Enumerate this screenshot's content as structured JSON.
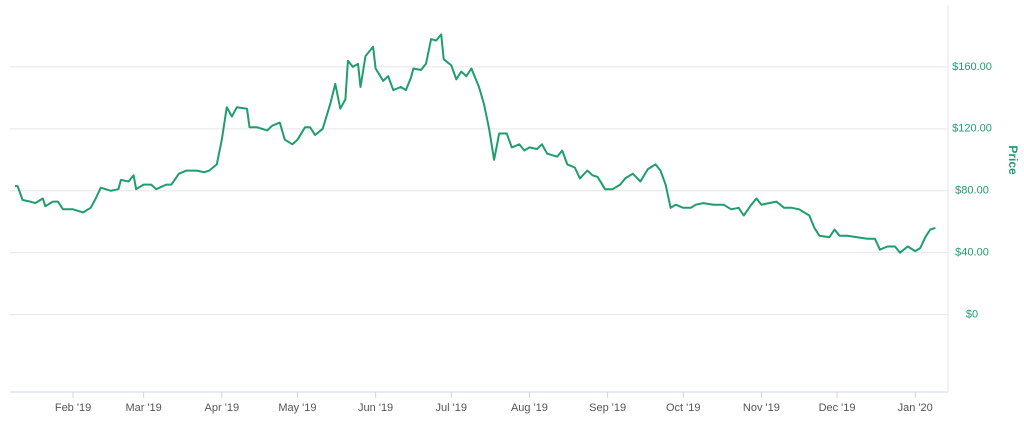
{
  "chart_data": {
    "type": "line",
    "y_label": "Price",
    "color": "#1f9d6f",
    "grid": true,
    "xlim": [
      6,
      378
    ],
    "ylim": [
      -50,
      200
    ],
    "yticks": [
      {
        "value": 0,
        "label": "$0"
      },
      {
        "value": 40,
        "label": "$40.00"
      },
      {
        "value": 80,
        "label": "$80.00"
      },
      {
        "value": 120,
        "label": "$120.00"
      },
      {
        "value": 160,
        "label": "$160.00"
      }
    ],
    "xticks": [
      {
        "value": 31,
        "label": "Feb '19"
      },
      {
        "value": 59,
        "label": "Mar '19"
      },
      {
        "value": 90,
        "label": "Apr '19"
      },
      {
        "value": 120,
        "label": "May '19"
      },
      {
        "value": 151,
        "label": "Jun '19"
      },
      {
        "value": 181,
        "label": "Jul '19"
      },
      {
        "value": 212,
        "label": "Aug '19"
      },
      {
        "value": 243,
        "label": "Sep '19"
      },
      {
        "value": 273,
        "label": "Oct '19"
      },
      {
        "value": 304,
        "label": "Nov '19"
      },
      {
        "value": 334,
        "label": "Dec '19"
      },
      {
        "value": 365,
        "label": "Jan '20"
      }
    ],
    "x": [
      8,
      9,
      11,
      14,
      16,
      19,
      20,
      23,
      25,
      27,
      31,
      35,
      38,
      40,
      42,
      46,
      49,
      50,
      53,
      55,
      56,
      59,
      62,
      64,
      68,
      70,
      73,
      76,
      80,
      83,
      85,
      88,
      90,
      92,
      94,
      96,
      100,
      101,
      104,
      108,
      110,
      113,
      115,
      118,
      120,
      123,
      125,
      127,
      130,
      133,
      135,
      137,
      139,
      140,
      142,
      144,
      145,
      147,
      150,
      151,
      154,
      156,
      158,
      161,
      163,
      165,
      166,
      169,
      171,
      173,
      175,
      177,
      178,
      181,
      183,
      185,
      187,
      189,
      192,
      194,
      196,
      198,
      200,
      203,
      205,
      208,
      210,
      212,
      215,
      217,
      219,
      223,
      225,
      227,
      230,
      232,
      235,
      237,
      239,
      242,
      245,
      248,
      250,
      253,
      256,
      259,
      262,
      264,
      266,
      268,
      270,
      273,
      276,
      278,
      281,
      285,
      289,
      292,
      295,
      297,
      300,
      302,
      304,
      307,
      310,
      313,
      316,
      319,
      323,
      325,
      327,
      331,
      333,
      335,
      338,
      342,
      346,
      349,
      351,
      354,
      357,
      359,
      362,
      365,
      367,
      369,
      371,
      373
    ],
    "values": [
      83,
      83,
      74,
      73,
      72,
      75,
      70,
      73,
      73,
      68,
      68,
      66,
      69,
      75,
      82,
      80,
      81,
      87,
      86,
      90,
      81,
      84,
      84,
      81,
      84,
      84,
      91,
      93,
      93,
      92,
      93,
      97,
      113,
      134,
      128,
      134,
      133,
      121,
      121,
      119,
      122,
      124,
      113,
      110,
      113,
      121,
      121,
      116,
      120,
      136,
      149,
      133,
      139,
      164,
      160,
      162,
      147,
      167,
      173,
      159,
      151,
      154,
      145,
      147,
      145,
      153,
      159,
      158,
      162,
      178,
      177,
      181,
      165,
      161,
      152,
      157,
      154,
      159,
      147,
      136,
      120,
      100,
      117,
      117,
      108,
      110,
      106,
      108,
      107,
      110,
      104,
      102,
      106,
      97,
      95,
      88,
      93,
      90,
      89,
      81,
      81,
      84,
      88,
      91,
      86,
      94,
      97,
      93,
      84,
      69,
      71,
      69,
      69,
      71,
      72,
      71,
      71,
      68,
      69,
      64,
      71,
      75,
      71,
      72,
      73,
      69,
      69,
      68,
      64,
      56,
      51,
      50,
      55,
      51,
      51,
      50,
      49,
      49,
      42,
      44,
      44,
      40,
      44,
      41,
      43,
      50,
      55,
      56
    ]
  }
}
